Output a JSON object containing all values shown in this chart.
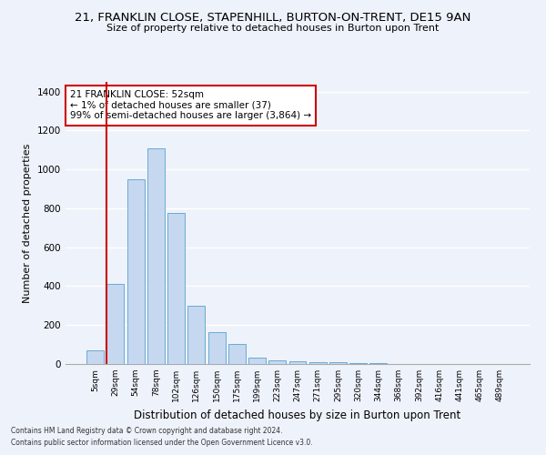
{
  "title": "21, FRANKLIN CLOSE, STAPENHILL, BURTON-ON-TRENT, DE15 9AN",
  "subtitle": "Size of property relative to detached houses in Burton upon Trent",
  "xlabel": "Distribution of detached houses by size in Burton upon Trent",
  "ylabel": "Number of detached properties",
  "footer1": "Contains HM Land Registry data © Crown copyright and database right 2024.",
  "footer2": "Contains public sector information licensed under the Open Government Licence v3.0.",
  "annotation_title": "21 FRANKLIN CLOSE: 52sqm",
  "annotation_line2": "← 1% of detached houses are smaller (37)",
  "annotation_line3": "99% of semi-detached houses are larger (3,864) →",
  "bar_color": "#c5d8f0",
  "bar_edge_color": "#6aaad4",
  "marker_line_color": "#cc0000",
  "annotation_box_color": "#ffffff",
  "annotation_box_edge": "#cc0000",
  "background_color": "#eef2fa",
  "categories": [
    "5sqm",
    "29sqm",
    "54sqm",
    "78sqm",
    "102sqm",
    "126sqm",
    "150sqm",
    "175sqm",
    "199sqm",
    "223sqm",
    "247sqm",
    "271sqm",
    "295sqm",
    "320sqm",
    "344sqm",
    "368sqm",
    "392sqm",
    "416sqm",
    "441sqm",
    "465sqm",
    "489sqm"
  ],
  "values": [
    70,
    410,
    950,
    1110,
    775,
    300,
    165,
    105,
    35,
    20,
    15,
    10,
    8,
    5,
    3,
    2,
    1,
    1,
    0,
    0,
    0
  ],
  "marker_bin": 1,
  "ylim": [
    0,
    1450
  ],
  "yticks": [
    0,
    200,
    400,
    600,
    800,
    1000,
    1200,
    1400
  ]
}
